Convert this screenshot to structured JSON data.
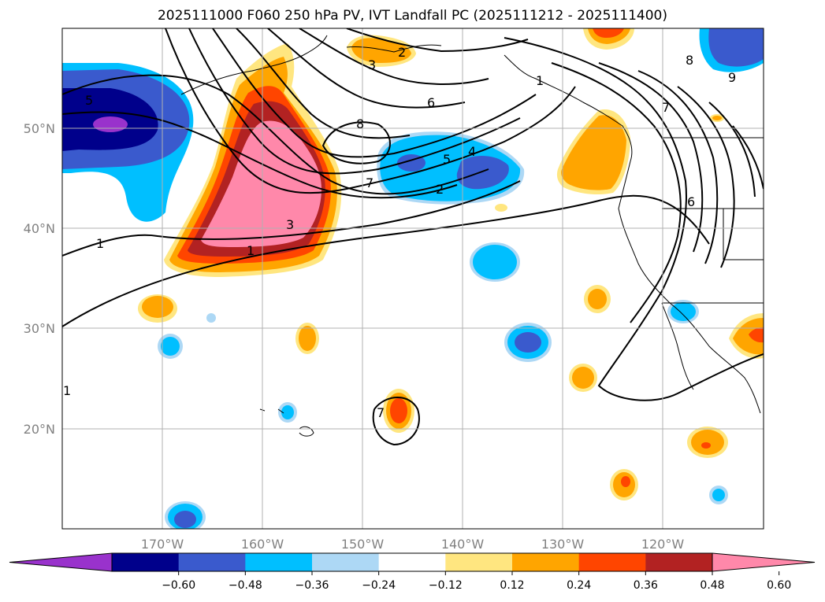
{
  "title": "2025111000 F060 250 hPa PV, IVT Landfall PC (2025111212 - 2025111400)",
  "map": {
    "projection": "equidistant-cylindrical",
    "lon_range": [
      -180,
      -110
    ],
    "lat_range": [
      10,
      60
    ],
    "lon_ticks": [
      -170,
      -160,
      -150,
      -140,
      -130,
      -120
    ],
    "lat_ticks": [
      20,
      30,
      40,
      50
    ],
    "lon_tick_labels": [
      "170°W",
      "160°W",
      "150°W",
      "140°W",
      "130°W",
      "120°W"
    ],
    "lat_tick_labels": [
      "20°N",
      "30°N",
      "40°N",
      "50°N"
    ],
    "grid": true,
    "tick_color": "#808080",
    "grid_color": "#b0b0b0"
  },
  "colorbar": {
    "orientation": "horizontal",
    "extend": "both",
    "levels": [
      -0.6,
      -0.48,
      -0.36,
      -0.24,
      -0.12,
      0.12,
      0.24,
      0.36,
      0.48,
      0.6
    ],
    "tick_labels": [
      "−0.60",
      "−0.48",
      "−0.36",
      "−0.24",
      "−0.12",
      "0.12",
      "0.24",
      "0.36",
      "0.48",
      "0.60"
    ],
    "colors": [
      "#9932cc",
      "#00008b",
      "#3a5acd",
      "#00bfff",
      "#add8f5",
      "#ffffff",
      "#ffe680",
      "#ffa500",
      "#ff4500",
      "#b22222",
      "#ff88aa"
    ]
  },
  "contour_labels": [
    "8",
    "6",
    "7",
    "5",
    "4",
    "2",
    "3",
    "1",
    "3",
    "2",
    "1",
    "7",
    "8",
    "9",
    "6",
    "7",
    "1",
    "1",
    "5"
  ]
}
